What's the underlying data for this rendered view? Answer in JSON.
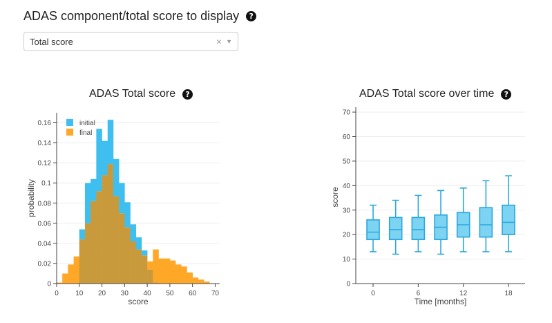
{
  "header": {
    "title": "ADAS component/total score to display",
    "help_icon": "question-circle-icon"
  },
  "dropdown": {
    "selected": "Total score",
    "clear_glyph": "×",
    "arrow_glyph": "▼"
  },
  "colors": {
    "initial": "#3fbfef",
    "final": "#ffa726",
    "overlap": "#c99a3c",
    "box_fill": "#7dd3f2",
    "box_stroke": "#2aa8dc"
  },
  "chart_data": [
    {
      "type": "bar",
      "title": "ADAS Total score",
      "xlabel": "score",
      "ylabel": "probability",
      "xlim": [
        0,
        72
      ],
      "ylim": [
        0,
        0.17
      ],
      "xticks": [
        0,
        10,
        20,
        30,
        40,
        50,
        60,
        70
      ],
      "yticks": [
        0,
        0.02,
        0.04,
        0.06,
        0.08,
        0.1,
        0.12,
        0.14,
        0.16
      ],
      "ytick_labels": [
        "0",
        "0.02",
        "0.04",
        "0.06",
        "0.08",
        "0.1",
        "0.12",
        "0.14",
        "0.16"
      ],
      "legend_placement": "top-left",
      "bin_edges": [
        0,
        2.5,
        5,
        7.5,
        10,
        12.5,
        15,
        17.5,
        20,
        22.5,
        25,
        27.5,
        30,
        32.5,
        35,
        37.5,
        40,
        42.5,
        45,
        47.5,
        50,
        52.5,
        55,
        57.5,
        60,
        62.5,
        65,
        67.5
      ],
      "series": [
        {
          "name": "initial",
          "values": [
            0,
            0,
            0,
            0,
            0.054,
            0.1,
            0.104,
            0.154,
            0.142,
            0.163,
            0.124,
            0.1,
            0.081,
            0.059,
            0.046,
            0.033,
            0.014,
            0.001,
            0,
            0,
            0,
            0,
            0,
            0,
            0,
            0,
            0
          ]
        },
        {
          "name": "final",
          "values": [
            0.001,
            0.01,
            0.019,
            0.027,
            0.044,
            0.06,
            0.082,
            0.092,
            0.108,
            0.119,
            0.087,
            0.07,
            0.056,
            0.042,
            0.034,
            0.028,
            0.022,
            0.034,
            0.025,
            0.025,
            0.023,
            0.019,
            0.017,
            0.011,
            0.006,
            0.004,
            0.002
          ]
        }
      ]
    },
    {
      "type": "box",
      "title": "ADAS Total score over time",
      "xlabel": "Time [months]",
      "ylabel": "score",
      "xlim": [
        -2.3,
        20.2
      ],
      "ylim": [
        0,
        72
      ],
      "xticks": [
        0,
        6,
        12,
        18
      ],
      "yticks": [
        0,
        10,
        20,
        30,
        40,
        50,
        60,
        70
      ],
      "boxes": [
        {
          "x": 0,
          "min": 13,
          "q1": 18,
          "median": 21,
          "q3": 26,
          "max": 32
        },
        {
          "x": 3,
          "min": 12,
          "q1": 18,
          "median": 22,
          "q3": 27,
          "max": 34
        },
        {
          "x": 6,
          "min": 13,
          "q1": 18,
          "median": 22,
          "q3": 27,
          "max": 36
        },
        {
          "x": 9,
          "min": 12,
          "q1": 18,
          "median": 23,
          "q3": 28,
          "max": 38
        },
        {
          "x": 12,
          "min": 13,
          "q1": 19,
          "median": 24,
          "q3": 29,
          "max": 39
        },
        {
          "x": 15,
          "min": 13,
          "q1": 19,
          "median": 24,
          "q3": 31,
          "max": 42
        },
        {
          "x": 18,
          "min": 13,
          "q1": 20,
          "median": 25,
          "q3": 32,
          "max": 44
        }
      ]
    }
  ]
}
